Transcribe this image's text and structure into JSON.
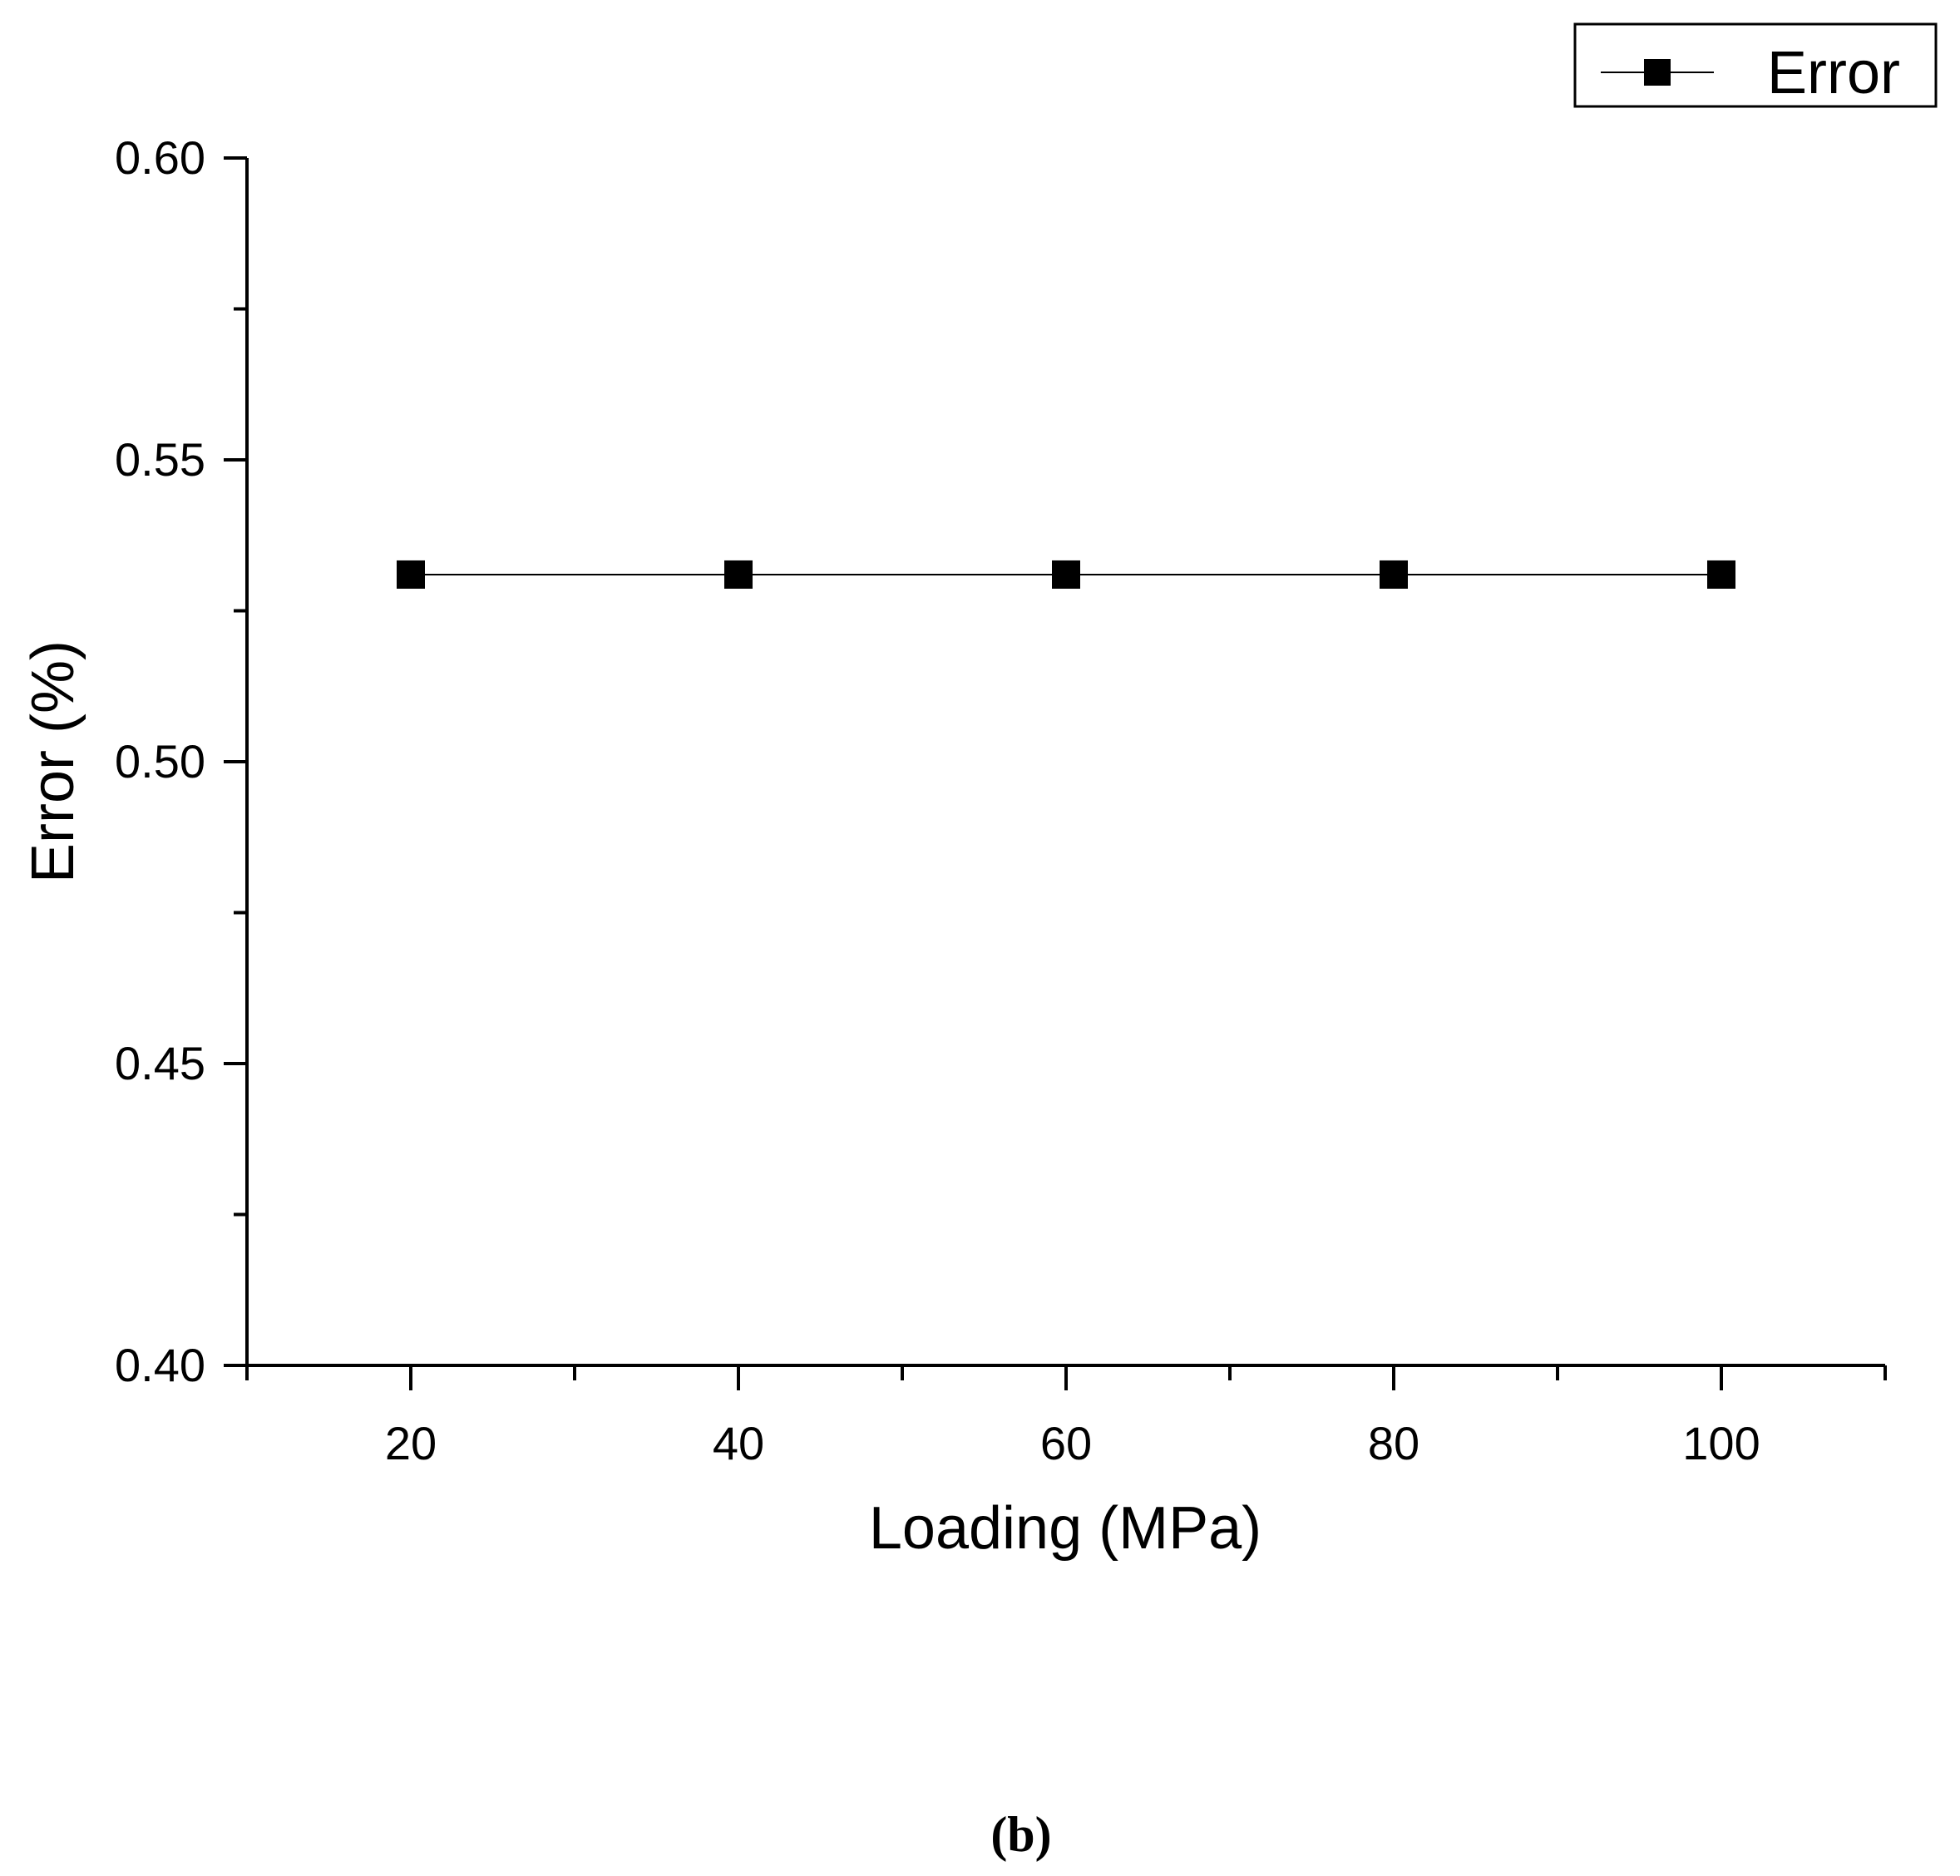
{
  "chart_data": {
    "type": "line",
    "xlabel": "Loading (MPa)",
    "ylabel": "Error (%)",
    "xlim": [
      10,
      110
    ],
    "ylim": [
      0.4,
      0.6
    ],
    "x_ticks": [
      20,
      40,
      60,
      80,
      100
    ],
    "x_tick_labels": [
      "20",
      "40",
      "60",
      "80",
      "100"
    ],
    "y_ticks": [
      0.4,
      0.45,
      0.5,
      0.55,
      0.6
    ],
    "y_tick_labels": [
      "0.40",
      "0.45",
      "0.50",
      "0.55",
      "0.60"
    ],
    "grid": false,
    "legend_position": "top-right",
    "series": [
      {
        "name": "Error",
        "marker": "square",
        "color": "#000000",
        "x": [
          20,
          40,
          60,
          80,
          100
        ],
        "y": [
          0.531,
          0.531,
          0.531,
          0.531,
          0.531
        ]
      }
    ]
  },
  "panel_label": "(b)"
}
